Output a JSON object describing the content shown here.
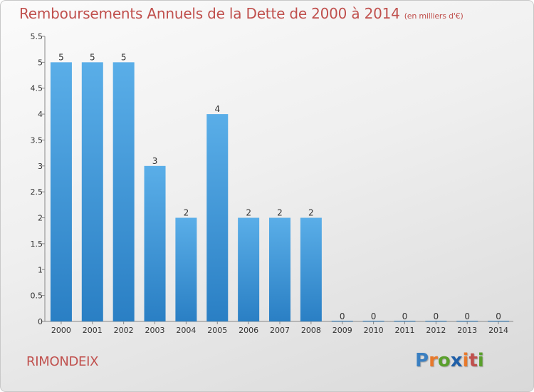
{
  "header": {
    "title": "Remboursements Annuels de la Dette de 2000 à 2014",
    "subtitle": "(en milliers d'€)"
  },
  "footer": {
    "commune": "RIMONDEIX",
    "logo_text": "Proxiti",
    "logo_letter_colors": [
      "#3a7fc1",
      "#e8792b",
      "#5aa02c",
      "#1f5fa8",
      "#e8792b",
      "#c0504d",
      "#5aa02c"
    ]
  },
  "colors": {
    "title": "#c0504d",
    "bar": "#3d97dc",
    "bar_light": "#5aaee8"
  },
  "chart_data": {
    "type": "bar",
    "title": "Remboursements Annuels de la Dette de 2000 à 2014",
    "subtitle": "(en milliers d'€)",
    "categories": [
      "2000",
      "2001",
      "2002",
      "2003",
      "2004",
      "2005",
      "2006",
      "2007",
      "2008",
      "2009",
      "2010",
      "2011",
      "2012",
      "2013",
      "2014"
    ],
    "values": [
      5,
      5,
      5,
      3,
      2,
      4,
      2,
      2,
      2,
      0,
      0,
      0,
      0,
      0,
      0
    ],
    "ylim": [
      0,
      5.5
    ],
    "yticks": [
      "0",
      "0.5",
      "1",
      "1.5",
      "2",
      "2.5",
      "3",
      "3.5",
      "4",
      "4.5",
      "5",
      "5.5"
    ],
    "grid": false,
    "xlabel": "",
    "ylabel": ""
  }
}
